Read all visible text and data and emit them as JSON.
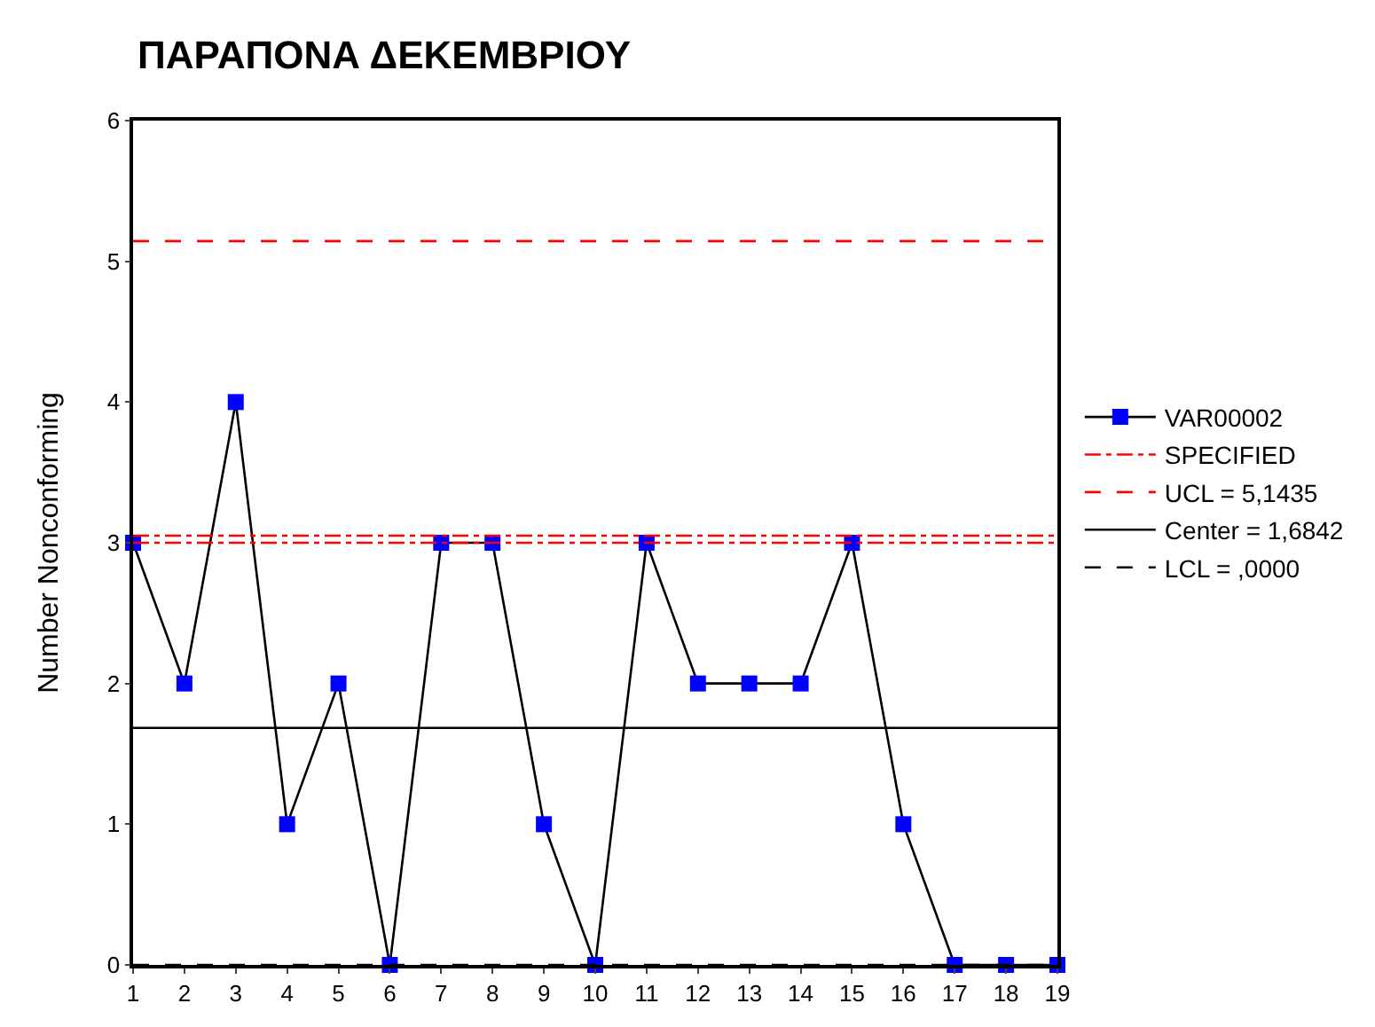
{
  "chart_data": {
    "type": "line",
    "title": "ΠΑΡΑΠΟΝΑ ΔΕΚΕΜΒΡΙΟΥ",
    "ylabel": "Number Nonconforming",
    "x": [
      1,
      2,
      3,
      4,
      5,
      6,
      7,
      8,
      9,
      10,
      11,
      12,
      13,
      14,
      15,
      16,
      17,
      18,
      19
    ],
    "series": [
      {
        "name": "VAR00002",
        "color": "#0000ff",
        "values": [
          3,
          2,
          4,
          1,
          2,
          0,
          3,
          3,
          1,
          0,
          3,
          2,
          2,
          2,
          3,
          1,
          0,
          0,
          0
        ]
      }
    ],
    "xlim": [
      1,
      19
    ],
    "xticks": [
      1,
      2,
      3,
      4,
      5,
      6,
      7,
      8,
      9,
      10,
      11,
      12,
      13,
      14,
      15,
      16,
      17,
      18,
      19
    ],
    "ylim": [
      0,
      6
    ],
    "yticks": [
      0,
      1,
      2,
      3,
      4,
      5,
      6
    ],
    "ref_lines": [
      {
        "axis": "y",
        "value": 3.05,
        "label": "SPECIFIED",
        "color": "#ff0000",
        "line_style": "dashdot"
      },
      {
        "axis": "y",
        "value": 3.0,
        "label": null,
        "color": "#ff0000",
        "line_style": "dashdot"
      },
      {
        "axis": "y",
        "value": 5.1435,
        "label": "UCL = 5,1435",
        "color": "#ff0000",
        "line_style": "dashed"
      },
      {
        "axis": "y",
        "value": 1.6842,
        "label": "Center = 1,6842",
        "color": "#000000",
        "line_style": "solid"
      },
      {
        "axis": "y",
        "value": 0,
        "label": "LCL = ,0000",
        "color": "#000000",
        "line_style": "dashed"
      }
    ],
    "grid": false,
    "legend": "right",
    "marker": "square",
    "line_style": "solid"
  }
}
